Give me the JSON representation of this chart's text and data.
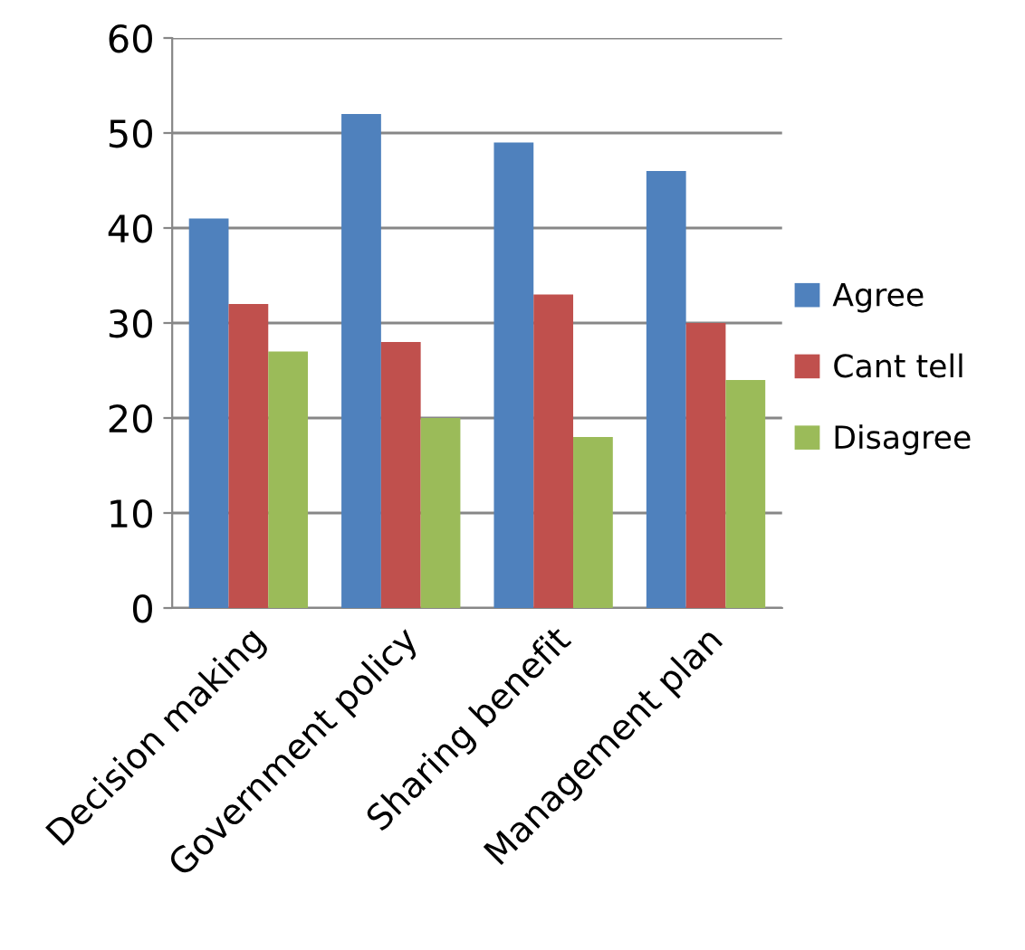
{
  "chart_data": {
    "type": "bar",
    "categories": [
      "Decision making",
      "Government policy",
      "Sharing benefit",
      "Management plan"
    ],
    "series": [
      {
        "name": "Agree",
        "color": "#4f81bd",
        "values": [
          41,
          52,
          49,
          46
        ]
      },
      {
        "name": "Cant tell",
        "color": "#c0504d",
        "values": [
          32,
          28,
          33,
          30
        ]
      },
      {
        "name": "Disagree",
        "color": "#9bbb59",
        "values": [
          27,
          20,
          18,
          24
        ]
      }
    ],
    "ylim": [
      0,
      60
    ],
    "yticks": [
      0,
      10,
      20,
      30,
      40,
      50,
      60
    ],
    "grid": "y",
    "legend": "right"
  }
}
